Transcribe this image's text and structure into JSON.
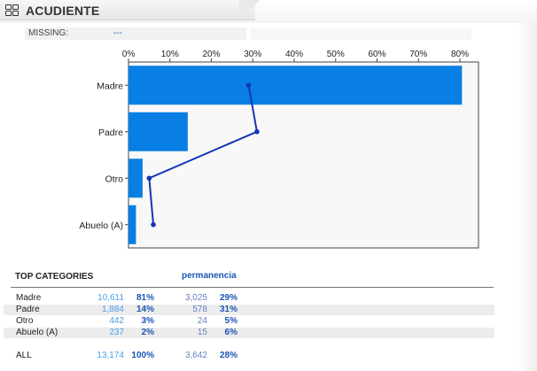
{
  "header": {
    "title": "ACUDIENTE"
  },
  "missing": {
    "label": "MISSING:",
    "value": "---"
  },
  "chart_data": {
    "type": "bar",
    "orientation": "horizontal",
    "categories": [
      "Madre",
      "Padre",
      "Otro",
      "Abuelo (A)"
    ],
    "series": [
      {
        "kind": "bar",
        "values": [
          80.5,
          14.3,
          3.4,
          1.8
        ]
      },
      {
        "kind": "line",
        "values": [
          29,
          31,
          5,
          6
        ]
      }
    ],
    "xticks": [
      "0%",
      "10%",
      "20%",
      "30%",
      "40%",
      "50%",
      "60%",
      "70%",
      "80%"
    ],
    "xlim": [
      0,
      85
    ],
    "axis_position": "top",
    "grid": false,
    "colors": {
      "bar": "#0a7fe3",
      "line": "#1236b8"
    }
  },
  "stats": {
    "title": "TOP CATEGORIES",
    "secondary_title": "permanencia",
    "rows": [
      {
        "name": "Madre",
        "count": "10,611",
        "pct": "81%",
        "count2": "3,025",
        "pct2": "29%"
      },
      {
        "name": "Padre",
        "count": "1,884",
        "pct": "14%",
        "count2": "578",
        "pct2": "31%"
      },
      {
        "name": "Otro",
        "count": "442",
        "pct": "3%",
        "count2": "24",
        "pct2": "5%"
      },
      {
        "name": "Abuelo (A)",
        "count": "237",
        "pct": "2%",
        "count2": "15",
        "pct2": "6%"
      }
    ],
    "total": {
      "name": "ALL",
      "count": "13,174",
      "pct": "100%",
      "count2": "3,642",
      "pct2": "28%"
    }
  }
}
